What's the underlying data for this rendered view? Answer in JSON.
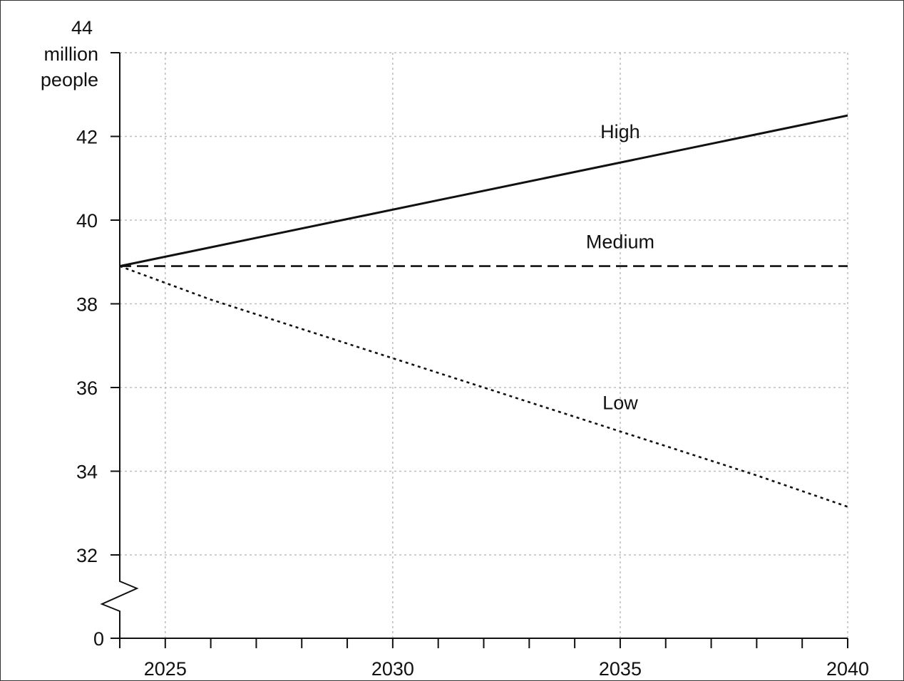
{
  "chart_data": {
    "type": "line",
    "y_unit_label": [
      "million",
      "people"
    ],
    "y_top_tick": "44",
    "y_ticks": [
      32,
      34,
      36,
      38,
      40,
      42
    ],
    "y_ticks_labels": [
      "32",
      "34",
      "36",
      "38",
      "40",
      "42"
    ],
    "y_zero_label": "0",
    "y_axis_break": true,
    "ylim": [
      32,
      44
    ],
    "x_ticks": [
      2025,
      2030,
      2035,
      2040
    ],
    "x_ticks_labels": [
      "2025",
      "2030",
      "2035",
      "2040"
    ],
    "xlim": [
      2024,
      2040
    ],
    "grid": true,
    "series": [
      {
        "name": "High",
        "style": "solid",
        "x": [
          2024,
          2040
        ],
        "y": [
          38.9,
          42.5
        ]
      },
      {
        "name": "Medium",
        "style": "dashed",
        "x": [
          2024,
          2040
        ],
        "y": [
          38.9,
          38.9
        ]
      },
      {
        "name": "Low",
        "style": "dotted",
        "x": [
          2024,
          2026,
          2028,
          2030,
          2032,
          2034,
          2036,
          2038,
          2040
        ],
        "y": [
          38.9,
          38.1,
          37.4,
          36.7,
          36.0,
          35.3,
          34.6,
          33.9,
          33.15
        ]
      }
    ],
    "colors": {
      "line": "#111111",
      "grid": "#bdbdbd"
    }
  }
}
